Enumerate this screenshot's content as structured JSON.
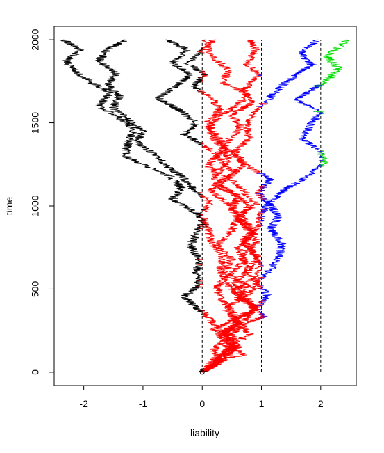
{
  "chart_data": {
    "type": "line",
    "title": "",
    "xlabel": "liability",
    "ylabel": "time",
    "xlim": [
      -2.5,
      2.6
    ],
    "ylim": [
      -80,
      2080
    ],
    "x_ticks": [
      -2,
      -1,
      0,
      1,
      2
    ],
    "y_ticks": [
      0,
      500,
      1000,
      1500,
      2000
    ],
    "x_tick_labels": [
      "-2",
      "-1",
      "0",
      "1",
      "2"
    ],
    "y_tick_labels": [
      "0",
      "500",
      "1000",
      "1500",
      "2000"
    ],
    "thresholds": [
      0,
      1,
      2
    ],
    "grid": false,
    "legend": "none",
    "start_point": {
      "x": 0,
      "t": 0
    },
    "state_colors": [
      "#000000",
      "#ff0000",
      "#0000ff",
      "#00dd00"
    ],
    "series": [
      {
        "color": "#ff0000",
        "points": [
          [
            0,
            0
          ],
          [
            0.3,
            80
          ],
          [
            0.7,
            100
          ],
          [
            0.4,
            180
          ],
          [
            0.2,
            260
          ],
          [
            0.55,
            320
          ],
          [
            0.9,
            390
          ],
          [
            0.6,
            450
          ],
          [
            0.75,
            520
          ],
          [
            0.4,
            600
          ],
          [
            0.5,
            680
          ],
          [
            0.25,
            760
          ],
          [
            0.5,
            850
          ],
          [
            0.6,
            930
          ],
          [
            0.8,
            1000
          ],
          [
            0.6,
            1050
          ],
          [
            0.3,
            1110
          ],
          [
            0.2,
            1180
          ],
          [
            0.45,
            1260
          ],
          [
            0.4,
            1340
          ],
          [
            0.2,
            1400
          ],
          [
            0.1,
            1480
          ],
          [
            0.3,
            1540
          ],
          [
            0.55,
            1600
          ],
          [
            0.8,
            1670
          ],
          [
            0.35,
            1740
          ],
          [
            0.45,
            1820
          ],
          [
            0.15,
            1900
          ],
          [
            0.05,
            2000
          ]
        ]
      },
      {
        "color": "#ff0000",
        "points": [
          [
            0,
            0
          ],
          [
            0.35,
            70
          ],
          [
            0.6,
            150
          ],
          [
            0.5,
            230
          ],
          [
            0.8,
            300
          ],
          [
            1.05,
            340
          ],
          [
            0.8,
            420
          ],
          [
            0.5,
            490
          ],
          [
            0.85,
            560
          ],
          [
            1.0,
            640
          ],
          [
            0.85,
            720
          ],
          [
            0.7,
            800
          ],
          [
            0.95,
            880
          ],
          [
            1.0,
            960
          ],
          [
            1.2,
            1040
          ],
          [
            1.4,
            1100
          ],
          [
            1.8,
            1180
          ],
          [
            2.05,
            1260
          ],
          [
            2.0,
            1330
          ],
          [
            1.7,
            1400
          ],
          [
            1.8,
            1480
          ],
          [
            2.0,
            1560
          ],
          [
            1.6,
            1640
          ],
          [
            1.9,
            1710
          ],
          [
            2.15,
            1770
          ],
          [
            2.3,
            1830
          ],
          [
            2.1,
            1900
          ],
          [
            2.45,
            2000
          ]
        ]
      },
      {
        "color": "#ff0000",
        "points": [
          [
            0,
            0
          ],
          [
            0.25,
            60
          ],
          [
            0.45,
            140
          ],
          [
            0.3,
            220
          ],
          [
            0.6,
            290
          ],
          [
            0.5,
            370
          ],
          [
            0.3,
            440
          ],
          [
            0.25,
            520
          ],
          [
            0.5,
            600
          ],
          [
            0.7,
            670
          ],
          [
            0.6,
            750
          ],
          [
            0.85,
            830
          ],
          [
            0.65,
            900
          ],
          [
            0.5,
            980
          ],
          [
            0.6,
            1060
          ],
          [
            0.3,
            1130
          ],
          [
            0.55,
            1200
          ],
          [
            0.3,
            1280
          ],
          [
            0.05,
            1360
          ],
          [
            -0.3,
            1430
          ],
          [
            -0.1,
            1500
          ],
          [
            -0.4,
            1580
          ],
          [
            -0.75,
            1650
          ],
          [
            -0.45,
            1720
          ],
          [
            -0.2,
            1790
          ],
          [
            -0.5,
            1860
          ],
          [
            -0.25,
            1940
          ],
          [
            -0.6,
            2000
          ]
        ]
      },
      {
        "color": "#ff0000",
        "points": [
          [
            0,
            0
          ],
          [
            0.3,
            60
          ],
          [
            0.2,
            140
          ],
          [
            0.45,
            220
          ],
          [
            0.2,
            290
          ],
          [
            0.05,
            350
          ],
          [
            -0.15,
            400
          ],
          [
            -0.3,
            460
          ],
          [
            -0.05,
            520
          ],
          [
            -0.1,
            600
          ],
          [
            -0.05,
            680
          ],
          [
            -0.2,
            760
          ],
          [
            -0.1,
            840
          ],
          [
            0.05,
            920
          ],
          [
            -0.2,
            980
          ],
          [
            -0.5,
            1040
          ],
          [
            -0.35,
            1110
          ],
          [
            -0.55,
            1180
          ],
          [
            -0.95,
            1240
          ],
          [
            -1.3,
            1300
          ],
          [
            -1.25,
            1380
          ],
          [
            -1.15,
            1460
          ],
          [
            -1.4,
            1530
          ],
          [
            -1.75,
            1600
          ],
          [
            -1.55,
            1680
          ],
          [
            -1.85,
            1740
          ],
          [
            -2.1,
            1800
          ],
          [
            -2.3,
            1870
          ],
          [
            -2.05,
            1940
          ],
          [
            -2.35,
            2000
          ]
        ]
      },
      {
        "color": "#ff0000",
        "points": [
          [
            0,
            0
          ],
          [
            0.2,
            80
          ],
          [
            0.5,
            160
          ],
          [
            0.4,
            240
          ],
          [
            0.7,
            310
          ],
          [
            0.9,
            380
          ],
          [
            0.6,
            460
          ],
          [
            0.4,
            540
          ],
          [
            0.3,
            620
          ],
          [
            0.35,
            700
          ],
          [
            0.15,
            780
          ],
          [
            0.1,
            860
          ],
          [
            -0.05,
            940
          ],
          [
            0.15,
            1020
          ],
          [
            -0.15,
            1100
          ],
          [
            -0.35,
            1180
          ],
          [
            -0.6,
            1240
          ],
          [
            -0.8,
            1310
          ],
          [
            -1.1,
            1380
          ],
          [
            -1.0,
            1450
          ],
          [
            -1.25,
            1520
          ],
          [
            -1.5,
            1590
          ],
          [
            -1.4,
            1660
          ],
          [
            -1.6,
            1730
          ],
          [
            -1.45,
            1800
          ],
          [
            -1.75,
            1870
          ],
          [
            -1.6,
            1940
          ],
          [
            -1.3,
            2000
          ]
        ]
      },
      {
        "color": "#ff0000",
        "points": [
          [
            0,
            0
          ],
          [
            0.4,
            80
          ],
          [
            0.55,
            160
          ],
          [
            0.35,
            240
          ],
          [
            0.65,
            320
          ],
          [
            0.95,
            400
          ],
          [
            1.1,
            470
          ],
          [
            0.9,
            540
          ],
          [
            1.15,
            620
          ],
          [
            1.3,
            700
          ],
          [
            1.35,
            780
          ],
          [
            1.15,
            860
          ],
          [
            1.3,
            940
          ],
          [
            1.1,
            1020
          ],
          [
            0.95,
            1080
          ],
          [
            1.15,
            1160
          ],
          [
            0.8,
            1230
          ],
          [
            0.55,
            1300
          ],
          [
            0.35,
            1370
          ],
          [
            0.2,
            1440
          ],
          [
            0.1,
            1510
          ],
          [
            0.3,
            1580
          ],
          [
            0.15,
            1650
          ],
          [
            -0.15,
            1720
          ],
          [
            0.05,
            1790
          ],
          [
            -0.25,
            1860
          ],
          [
            0.0,
            1930
          ],
          [
            0.2,
            2000
          ]
        ]
      },
      {
        "color": "#ff0000",
        "points": [
          [
            0,
            0
          ],
          [
            0.3,
            70
          ],
          [
            0.45,
            150
          ],
          [
            0.8,
            230
          ],
          [
            0.55,
            310
          ],
          [
            0.9,
            380
          ],
          [
            0.75,
            460
          ],
          [
            0.95,
            530
          ],
          [
            0.75,
            610
          ],
          [
            0.95,
            690
          ],
          [
            0.7,
            770
          ],
          [
            0.85,
            850
          ],
          [
            0.6,
            930
          ],
          [
            0.9,
            1010
          ],
          [
            0.7,
            1090
          ],
          [
            0.45,
            1170
          ],
          [
            0.7,
            1250
          ],
          [
            0.55,
            1330
          ],
          [
            0.8,
            1410
          ],
          [
            0.75,
            1490
          ],
          [
            0.9,
            1570
          ],
          [
            1.1,
            1640
          ],
          [
            1.3,
            1710
          ],
          [
            1.55,
            1780
          ],
          [
            1.85,
            1850
          ],
          [
            1.65,
            1920
          ],
          [
            1.95,
            2000
          ]
        ]
      },
      {
        "color": "#ff0000",
        "points": [
          [
            0,
            0
          ],
          [
            0.25,
            80
          ],
          [
            0.55,
            150
          ],
          [
            0.35,
            230
          ],
          [
            0.6,
            300
          ],
          [
            0.4,
            380
          ],
          [
            0.7,
            460
          ],
          [
            0.55,
            540
          ],
          [
            0.8,
            620
          ],
          [
            0.65,
            700
          ],
          [
            0.9,
            780
          ],
          [
            0.85,
            860
          ],
          [
            0.65,
            940
          ],
          [
            0.4,
            1020
          ],
          [
            0.15,
            1090
          ],
          [
            0.35,
            1170
          ],
          [
            0.1,
            1240
          ],
          [
            0.3,
            1320
          ],
          [
            0.45,
            1400
          ],
          [
            0.65,
            1470
          ],
          [
            0.5,
            1550
          ],
          [
            0.85,
            1620
          ],
          [
            0.7,
            1700
          ],
          [
            0.95,
            1780
          ],
          [
            0.75,
            1860
          ],
          [
            0.9,
            1940
          ],
          [
            0.8,
            2000
          ]
        ]
      }
    ]
  }
}
